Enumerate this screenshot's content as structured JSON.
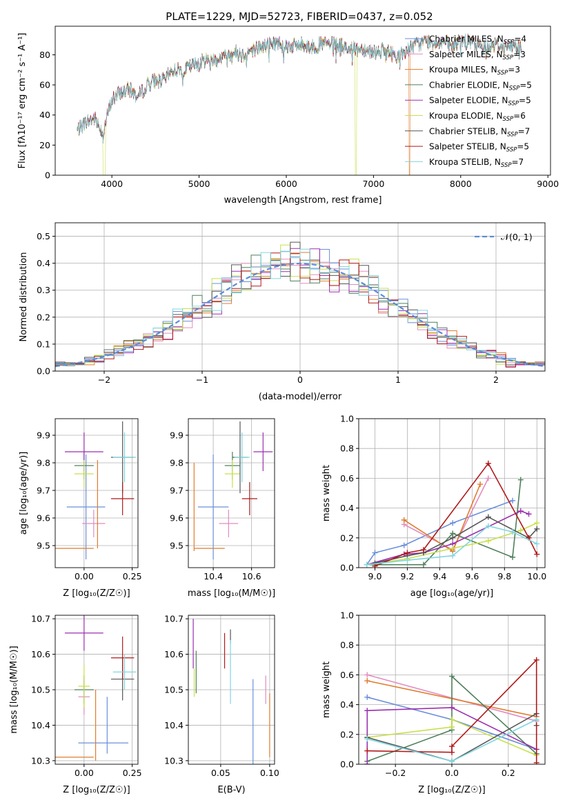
{
  "title": "PLATE=1229, MJD=52723, FIBERID=0437, z=0.052",
  "colors": {
    "Chabrier MILES": "#6a8fdb",
    "Salpeter MILES": "#e38bc0",
    "Kroupa MILES": "#e07b2c",
    "Chabrier ELODIE": "#4f7f5a",
    "Salpeter ELODIE": "#9b2fb0",
    "Kroupa ELODIE": "#c7e04c",
    "Chabrier STELIB": "#555555",
    "Salpeter STELIB": "#b01818",
    "Kroupa STELIB": "#7fd6df",
    "gaussian": "#5b8bd6"
  },
  "chart_data": [
    {
      "type": "line",
      "id": "spectrum",
      "xlabel": "wavelength [Angstrom, rest frame]",
      "ylabel": "Flux [f",
      "ylabel_full": "Flux [fλ10⁻¹⁷ erg cm⁻² s⁻¹ A⁻¹]",
      "xlim": [
        3350,
        9030
      ],
      "ylim": [
        0,
        99
      ],
      "xticks": [
        4000,
        5000,
        6000,
        7000,
        8000,
        9000
      ],
      "yticks": [
        0,
        20,
        40,
        60,
        80
      ],
      "grid": false,
      "legend_position": "top-right",
      "spectrum_anchors": {
        "x": [
          3600,
          3700,
          3800,
          3900,
          3950,
          4000,
          4100,
          4200,
          4300,
          4400,
          4500,
          4600,
          4700,
          4800,
          4900,
          5000,
          5100,
          5200,
          5300,
          5400,
          5500,
          5600,
          5700,
          5800,
          5900,
          6000,
          6100,
          6200,
          6300,
          6400,
          6500,
          6600,
          6700,
          6800,
          6900,
          7000,
          7100,
          7200,
          7300,
          7400,
          7500,
          7600,
          7700,
          7800,
          7900,
          8000,
          8100,
          8200,
          8300,
          8400,
          8500,
          8600,
          8700
        ],
        "y": [
          30,
          35,
          38,
          28,
          40,
          50,
          55,
          57,
          52,
          60,
          63,
          63,
          70,
          70,
          72,
          75,
          77,
          77,
          79,
          82,
          80,
          83,
          85,
          87,
          88,
          86,
          86,
          87,
          85,
          87,
          87,
          86,
          85,
          84,
          84,
          82,
          83,
          81,
          79,
          84,
          87,
          89,
          88,
          89,
          85,
          90,
          88,
          86,
          86,
          87,
          85,
          86,
          85
        ]
      },
      "dropouts": [
        {
          "series": "Kroupa ELODIE",
          "x": [
            3900,
            3925
          ]
        },
        {
          "series": "Kroupa ELODIE",
          "x": [
            6790,
            6805
          ]
        },
        {
          "series": "Kroupa MILES",
          "x": [
            7405,
            7420
          ]
        }
      ],
      "series": [
        {
          "name": "Chabrier MILES",
          "label": "Chabrier MILES, N",
          "n_ssp": "=4"
        },
        {
          "name": "Salpeter MILES",
          "label": "Salpeter MILES, N",
          "n_ssp": "=3"
        },
        {
          "name": "Kroupa MILES",
          "label": "Kroupa MILES, N",
          "n_ssp": "=3"
        },
        {
          "name": "Chabrier ELODIE",
          "label": "Chabrier ELODIE, N",
          "n_ssp": "=5"
        },
        {
          "name": "Salpeter ELODIE",
          "label": "Salpeter ELODIE, N",
          "n_ssp": "=5"
        },
        {
          "name": "Kroupa ELODIE",
          "label": "Kroupa ELODIE, N",
          "n_ssp": "=6"
        },
        {
          "name": "Chabrier STELIB",
          "label": "Chabrier STELIB, N",
          "n_ssp": "=7"
        },
        {
          "name": "Salpeter STELIB",
          "label": "Salpeter STELIB, N",
          "n_ssp": "=5"
        },
        {
          "name": "Kroupa STELIB",
          "label": "Kroupa STELIB, N",
          "n_ssp": "=7"
        }
      ],
      "subscript": "SSP"
    },
    {
      "type": "line",
      "id": "residual-histogram",
      "xlabel": "(data-model)/error",
      "ylabel": "Normed distribution",
      "xlim": [
        -2.5,
        2.5
      ],
      "ylim": [
        0,
        0.55
      ],
      "xticks": [
        -2,
        -1,
        0,
        1,
        2
      ],
      "yticks": [
        0.0,
        0.1,
        0.2,
        0.3,
        0.4,
        0.5
      ],
      "grid": true,
      "legend": "𝒩(0, 1)",
      "legend_position": "top-right",
      "bin_width": 0.1,
      "gaussian": {
        "mean": 0,
        "sigma": 1
      }
    },
    {
      "type": "scatter",
      "id": "age-vs-Z",
      "xlabel": "Z [log₁₀(Z/Z☉)]",
      "ylabel": "age  [log₁₀(age/yr)]",
      "xlim": [
        -0.15,
        0.28
      ],
      "ylim": [
        9.42,
        9.96
      ],
      "xticks": [
        0.0,
        0.25
      ],
      "yticks": [
        9.5,
        9.6,
        9.7,
        9.8,
        9.9
      ],
      "grid": true,
      "points": [
        {
          "series": "Chabrier MILES",
          "x": 0.01,
          "xerr": 0.1,
          "y": 9.64,
          "yerr": 0.19
        },
        {
          "series": "Salpeter MILES",
          "x": 0.05,
          "xerr": 0.06,
          "y": 9.58,
          "yerr": 0.05
        },
        {
          "series": "Kroupa MILES",
          "x": 0.07,
          "xerr": 0.0,
          "y": 9.65,
          "yerr": 0.16
        },
        {
          "series": "Kroupa MILES",
          "x": -0.05,
          "xerr": 0.1,
          "y": 9.49,
          "yerr": 0.0
        },
        {
          "series": "Chabrier ELODIE",
          "x": 0.0,
          "xerr": 0.05,
          "y": 9.79,
          "yerr": 0.05
        },
        {
          "series": "Salpeter ELODIE",
          "x": 0.0,
          "xerr": 0.1,
          "y": 9.84,
          "yerr": 0.07
        },
        {
          "series": "Kroupa ELODIE",
          "x": 0.0,
          "xerr": 0.05,
          "y": 9.76,
          "yerr": 0.05
        },
        {
          "series": "Chabrier STELIB",
          "x": 0.2,
          "xerr": 0.06,
          "y": 9.82,
          "yerr": 0.13
        },
        {
          "series": "Salpeter STELIB",
          "x": 0.2,
          "xerr": 0.06,
          "y": 9.67,
          "yerr": 0.06
        },
        {
          "series": "Kroupa STELIB",
          "x": 0.21,
          "xerr": 0.06,
          "y": 9.82,
          "yerr": 0.09
        }
      ]
    },
    {
      "type": "scatter",
      "id": "age-vs-mass",
      "xlabel": "mass [log₁₀(M/M☉)]",
      "ylabel": "",
      "xlim": [
        10.27,
        10.72
      ],
      "ylim": [
        9.42,
        9.96
      ],
      "xticks": [
        10.4,
        10.6
      ],
      "yticks": [
        9.5,
        9.6,
        9.7,
        9.8,
        9.9
      ],
      "grid": true,
      "points": [
        {
          "series": "Chabrier MILES",
          "x": 10.4,
          "xerr": 0.08,
          "y": 9.64,
          "yerr": 0.19
        },
        {
          "series": "Salpeter MILES",
          "x": 10.48,
          "xerr": 0.05,
          "y": 9.58,
          "yerr": 0.05
        },
        {
          "series": "Kroupa MILES",
          "x": 10.3,
          "xerr": 0.0,
          "y": 9.64,
          "yerr": 0.16
        },
        {
          "series": "Kroupa MILES",
          "x": 10.38,
          "xerr": 0.08,
          "y": 9.49,
          "yerr": 0.0
        },
        {
          "series": "Chabrier ELODIE",
          "x": 10.5,
          "xerr": 0.04,
          "y": 9.79,
          "yerr": 0.05
        },
        {
          "series": "Salpeter ELODIE",
          "x": 10.66,
          "xerr": 0.05,
          "y": 9.84,
          "yerr": 0.07
        },
        {
          "series": "Kroupa ELODIE",
          "x": 10.5,
          "xerr": 0.04,
          "y": 9.76,
          "yerr": 0.05
        },
        {
          "series": "Chabrier STELIB",
          "x": 10.54,
          "xerr": 0.04,
          "y": 9.82,
          "yerr": 0.13
        },
        {
          "series": "Salpeter STELIB",
          "x": 10.59,
          "xerr": 0.04,
          "y": 9.67,
          "yerr": 0.06
        },
        {
          "series": "Kroupa STELIB",
          "x": 10.55,
          "xerr": 0.04,
          "y": 9.82,
          "yerr": 0.09
        }
      ]
    },
    {
      "type": "line",
      "id": "mass-weight-vs-age",
      "xlabel": "age  [log₁₀(age/yr)]",
      "ylabel": "mass weight",
      "xlim": [
        8.9,
        10.05
      ],
      "ylim": [
        0,
        1
      ],
      "xticks": [
        9.0,
        9.2,
        9.4,
        9.6,
        9.8,
        10.0
      ],
      "yticks": [
        0.0,
        0.2,
        0.4,
        0.6,
        0.8,
        1.0
      ],
      "grid": true,
      "series": [
        {
          "name": "Chabrier MILES",
          "x": [
            8.95,
            9.0,
            9.18,
            9.48,
            9.85
          ],
          "y": [
            0.02,
            0.1,
            0.15,
            0.3,
            0.45
          ]
        },
        {
          "name": "Salpeter MILES",
          "x": [
            9.18,
            9.48,
            9.7
          ],
          "y": [
            0.29,
            0.12,
            0.6
          ]
        },
        {
          "name": "Kroupa MILES",
          "x": [
            9.18,
            9.48,
            9.65
          ],
          "y": [
            0.32,
            0.11,
            0.56
          ]
        },
        {
          "name": "Chabrier ELODIE",
          "x": [
            8.95,
            9.3,
            9.48,
            9.85,
            9.9
          ],
          "y": [
            0.02,
            0.02,
            0.23,
            0.07,
            0.59
          ]
        },
        {
          "name": "Salpeter ELODIE",
          "x": [
            8.95,
            9.18,
            9.3,
            9.48,
            9.9,
            9.95
          ],
          "y": [
            0.02,
            0.09,
            0.1,
            0.16,
            0.38,
            0.36
          ]
        },
        {
          "name": "Kroupa ELODIE",
          "x": [
            8.95,
            9.2,
            9.48,
            9.7,
            9.9,
            10.0
          ],
          "y": [
            0.02,
            0.06,
            0.13,
            0.18,
            0.25,
            0.3
          ]
        },
        {
          "name": "Chabrier STELIB",
          "x": [
            9.0,
            9.2,
            9.3,
            9.48,
            9.7,
            9.95,
            10.0
          ],
          "y": [
            0.03,
            0.08,
            0.1,
            0.2,
            0.34,
            0.2,
            0.26
          ]
        },
        {
          "name": "Salpeter STELIB",
          "x": [
            9.0,
            9.2,
            9.3,
            9.7,
            9.95,
            10.0
          ],
          "y": [
            0.01,
            0.1,
            0.12,
            0.7,
            0.2,
            0.09
          ]
        },
        {
          "name": "Kroupa STELIB",
          "x": [
            8.95,
            9.2,
            9.48,
            9.7,
            9.85,
            10.0
          ],
          "y": [
            0.02,
            0.05,
            0.08,
            0.28,
            0.24,
            0.16
          ]
        }
      ]
    },
    {
      "type": "scatter",
      "id": "mass-vs-Z",
      "xlabel": "Z [log₁₀(Z/Z☉)]",
      "ylabel": "mass [log₁₀(M/M☉)]",
      "xlim": [
        -0.15,
        0.28
      ],
      "ylim": [
        10.29,
        10.71
      ],
      "xticks": [
        0.0,
        0.25
      ],
      "yticks": [
        10.3,
        10.4,
        10.5,
        10.6,
        10.7
      ],
      "grid": true,
      "points": [
        {
          "series": "Chabrier MILES",
          "x": 0.1,
          "xerr": 0.13,
          "y": 10.35,
          "yerr": 0.0
        },
        {
          "series": "Chabrier MILES",
          "x": 0.12,
          "xerr": 0.0,
          "y": 10.4,
          "yerr": 0.08
        },
        {
          "series": "Salpeter MILES",
          "x": 0.0,
          "xerr": 0.03,
          "y": 10.48,
          "yerr": 0.05
        },
        {
          "series": "Kroupa MILES",
          "x": 0.06,
          "xerr": 0.0,
          "y": 10.4,
          "yerr": 0.1
        },
        {
          "series": "Kroupa MILES",
          "x": -0.05,
          "xerr": 0.1,
          "y": 10.31,
          "yerr": 0.0
        },
        {
          "series": "Chabrier ELODIE",
          "x": 0.0,
          "xerr": 0.05,
          "y": 10.5,
          "yerr": 0.04
        },
        {
          "series": "Salpeter ELODIE",
          "x": 0.0,
          "xerr": 0.1,
          "y": 10.66,
          "yerr": 0.05
        },
        {
          "series": "Kroupa ELODIE",
          "x": 0.0,
          "xerr": 0.03,
          "y": 10.51,
          "yerr": 0.06
        },
        {
          "series": "Chabrier STELIB",
          "x": 0.2,
          "xerr": 0.06,
          "y": 10.53,
          "yerr": 0.06
        },
        {
          "series": "Salpeter STELIB",
          "x": 0.2,
          "xerr": 0.06,
          "y": 10.59,
          "yerr": 0.06
        },
        {
          "series": "Kroupa STELIB",
          "x": 0.21,
          "xerr": 0.06,
          "y": 10.55,
          "yerr": 0.05
        }
      ]
    },
    {
      "type": "scatter",
      "id": "mass-vs-ebv",
      "xlabel": "E(B-V)",
      "ylabel": "",
      "xlim": [
        0.017,
        0.105
      ],
      "ylim": [
        10.29,
        10.71
      ],
      "xticks": [
        0.05,
        0.1
      ],
      "yticks": [
        10.3,
        10.4,
        10.5,
        10.6,
        10.7
      ],
      "grid": true,
      "points": [
        {
          "series": "Salpeter ELODIE",
          "x": 0.022,
          "xerr": 0,
          "y": 10.63,
          "yerr": 0.07
        },
        {
          "series": "Kroupa ELODIE",
          "x": 0.023,
          "xerr": 0,
          "y": 10.52,
          "yerr": 0.04
        },
        {
          "series": "Chabrier ELODIE",
          "x": 0.025,
          "xerr": 0,
          "y": 10.55,
          "yerr": 0.06
        },
        {
          "series": "Salpeter STELIB",
          "x": 0.054,
          "xerr": 0,
          "y": 10.61,
          "yerr": 0.05
        },
        {
          "series": "Chabrier STELIB",
          "x": 0.06,
          "xerr": 0,
          "y": 10.65,
          "yerr": 0.02
        },
        {
          "series": "Kroupa STELIB",
          "x": 0.06,
          "xerr": 0,
          "y": 10.55,
          "yerr": 0.09
        },
        {
          "series": "Chabrier MILES",
          "x": 0.083,
          "xerr": 0,
          "y": 10.4,
          "yerr": 0.13
        },
        {
          "series": "Salpeter MILES",
          "x": 0.096,
          "xerr": 0,
          "y": 10.5,
          "yerr": 0.04
        },
        {
          "series": "Kroupa MILES",
          "x": 0.1,
          "xerr": 0,
          "y": 10.4,
          "yerr": 0.09
        }
      ]
    },
    {
      "type": "line",
      "id": "mass-weight-vs-Z",
      "xlabel": "Z [log₁₀(Z/Z☉)]",
      "ylabel": "mass weight",
      "xlim": [
        -0.33,
        0.33
      ],
      "ylim": [
        0,
        1
      ],
      "xticks": [
        -0.2,
        0.0,
        0.2
      ],
      "yticks": [
        0.0,
        0.2,
        0.4,
        0.6,
        0.8,
        1.0
      ],
      "grid": true,
      "series": [
        {
          "name": "Chabrier MILES",
          "x": [
            -0.3,
            0.0,
            0.3
          ],
          "y": [
            0.45,
            0.3,
            0.1
          ]
        },
        {
          "name": "Salpeter MILES",
          "x": [
            -0.3,
            0.3
          ],
          "y": [
            0.6,
            0.29
          ]
        },
        {
          "name": "Kroupa MILES",
          "x": [
            -0.3,
            0.3
          ],
          "y": [
            0.56,
            0.32
          ]
        },
        {
          "name": "Chabrier ELODIE",
          "x": [
            -0.3,
            0.0,
            0.0,
            0.3
          ],
          "y": [
            0.02,
            0.23,
            0.59,
            0.07
          ]
        },
        {
          "name": "Salpeter ELODIE",
          "x": [
            -0.3,
            -0.3,
            0.0,
            0.3
          ],
          "y": [
            0.0,
            0.36,
            0.38,
            0.1
          ]
        },
        {
          "name": "Kroupa ELODIE",
          "x": [
            -0.3,
            0.0,
            0.0,
            0.3
          ],
          "y": [
            0.18,
            0.25,
            0.3,
            0.06
          ]
        },
        {
          "name": "Chabrier STELIB",
          "x": [
            -0.3,
            0.0,
            0.3,
            0.3
          ],
          "y": [
            0.18,
            0.02,
            0.34,
            0.26
          ]
        },
        {
          "name": "Salpeter STELIB",
          "x": [
            -0.3,
            0.0,
            0.0,
            0.3,
            0.3
          ],
          "y": [
            0.09,
            0.08,
            0.12,
            0.7,
            0.01
          ]
        },
        {
          "name": "Kroupa STELIB",
          "x": [
            -0.3,
            0.0,
            0.3
          ],
          "y": [
            0.17,
            0.02,
            0.3
          ]
        }
      ]
    }
  ]
}
